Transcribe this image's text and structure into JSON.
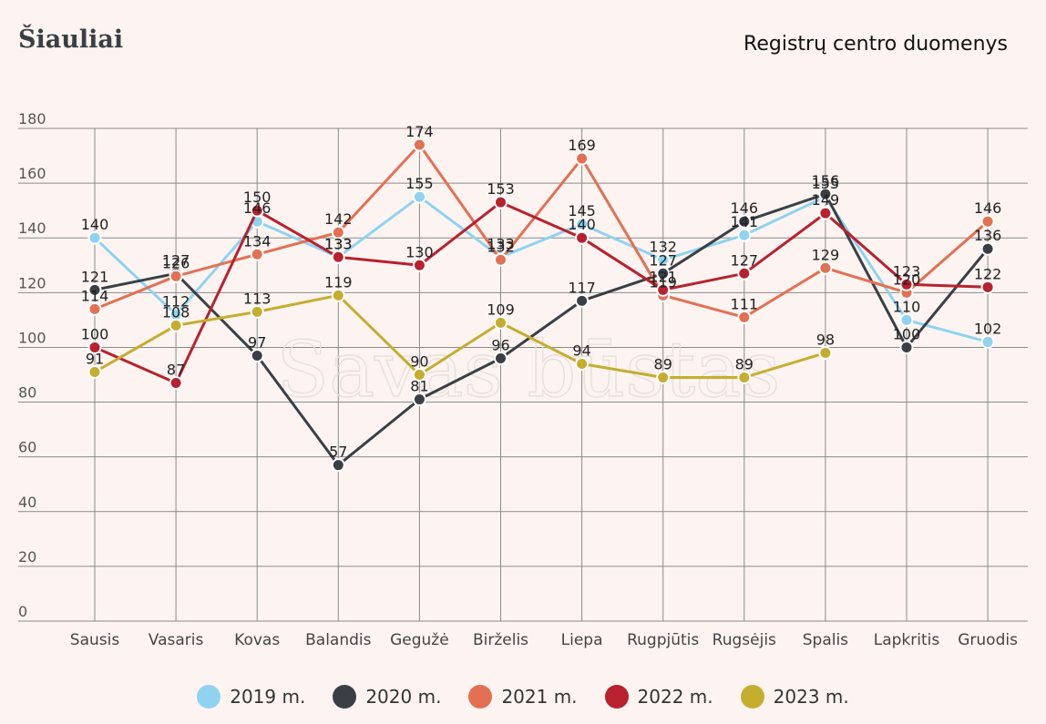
{
  "header": {
    "title": "Šiauliai",
    "source": "Registrų centro duomenys"
  },
  "watermark": "Savas būstas",
  "chart_data": {
    "type": "line",
    "categories": [
      "Sausis",
      "Vasaris",
      "Kovas",
      "Balandis",
      "Gegužė",
      "Birželis",
      "Liepa",
      "Rugpjūtis",
      "Rugsėjis",
      "Spalis",
      "Lapkritis",
      "Gruodis"
    ],
    "ylim": [
      0,
      180
    ],
    "yticks": [
      0,
      20,
      40,
      60,
      80,
      100,
      120,
      140,
      160,
      180
    ],
    "grid": true,
    "legend_position": "bottom",
    "series": [
      {
        "name": "2019 m.",
        "color": "#8fd3f0",
        "values": [
          140,
          112,
          146,
          133,
          155,
          133,
          145,
          132,
          141,
          155,
          110,
          102
        ]
      },
      {
        "name": "2020 m.",
        "color": "#393f45",
        "values": [
          121,
          127,
          97,
          57,
          81,
          96,
          117,
          127,
          146,
          156,
          100,
          136
        ]
      },
      {
        "name": "2021 m.",
        "color": "#e37052",
        "values": [
          114,
          126,
          134,
          142,
          174,
          132,
          169,
          119,
          111,
          129,
          120,
          146
        ]
      },
      {
        "name": "2022 m.",
        "color": "#b8212d",
        "values": [
          100,
          87,
          150,
          133,
          130,
          153,
          140,
          121,
          127,
          149,
          123,
          122
        ]
      },
      {
        "name": "2023 m.",
        "color": "#c5ad2e",
        "values": [
          91,
          108,
          113,
          119,
          90,
          109,
          94,
          89,
          89,
          98,
          null,
          null
        ]
      }
    ]
  }
}
